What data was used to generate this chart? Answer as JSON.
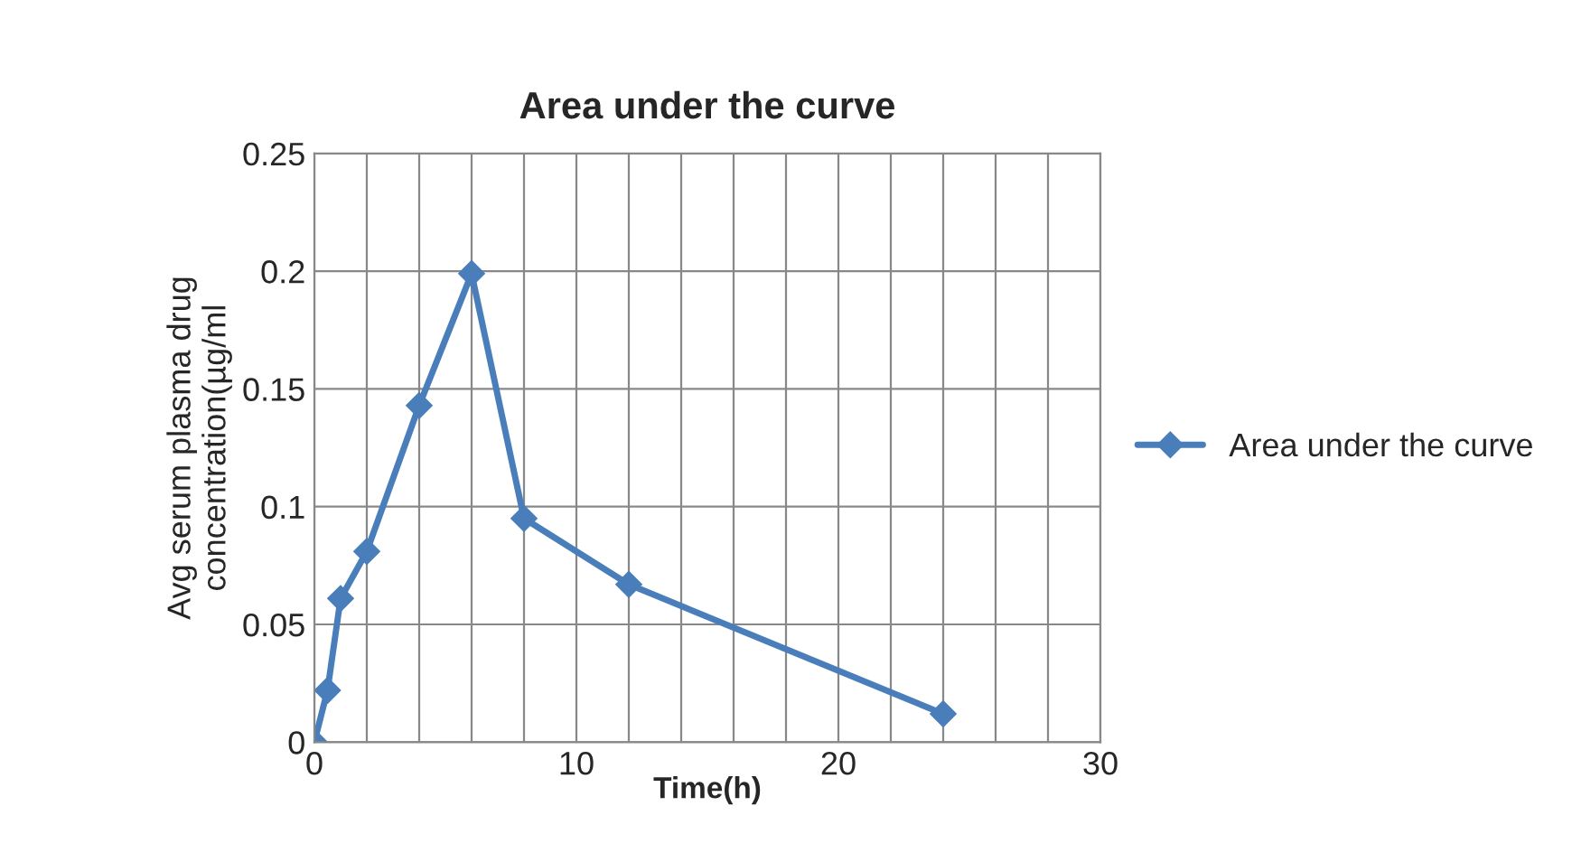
{
  "chart_data": {
    "type": "line",
    "title": "Area under the curve",
    "xlabel": "Time(h)",
    "ylabel": "Avg serum plasma drug\nconcentration(µg/ml",
    "x": [
      0,
      0.5,
      1,
      2,
      4,
      6,
      8,
      12,
      24
    ],
    "series": [
      {
        "name": "Area under the curve",
        "color": "#4a7ebb",
        "values": [
          0,
          0.022,
          0.061,
          0.081,
          0.143,
          0.199,
          0.095,
          0.067,
          0.012
        ]
      }
    ],
    "xlim": [
      0,
      30
    ],
    "xticks": [
      0,
      {
        "value": 2,
        "label": null
      },
      {
        "value": 4,
        "label": null
      },
      {
        "value": 6,
        "label": null
      },
      {
        "value": 8,
        "label": null
      },
      10,
      {
        "value": 12,
        "label": null
      },
      {
        "value": 14,
        "label": null
      },
      {
        "value": 16,
        "label": null
      },
      {
        "value": 18,
        "label": null
      },
      20,
      {
        "value": 22,
        "label": null
      },
      {
        "value": 24,
        "label": null
      },
      {
        "value": 26,
        "label": null
      },
      {
        "value": 28,
        "label": null
      },
      30
    ],
    "ylim": [
      0,
      0.25
    ],
    "yticks": [
      0,
      0.05,
      0.1,
      0.15,
      0.2,
      0.25
    ],
    "grid": true,
    "legend": "right",
    "marker": "diamond",
    "line_style": "solid"
  }
}
